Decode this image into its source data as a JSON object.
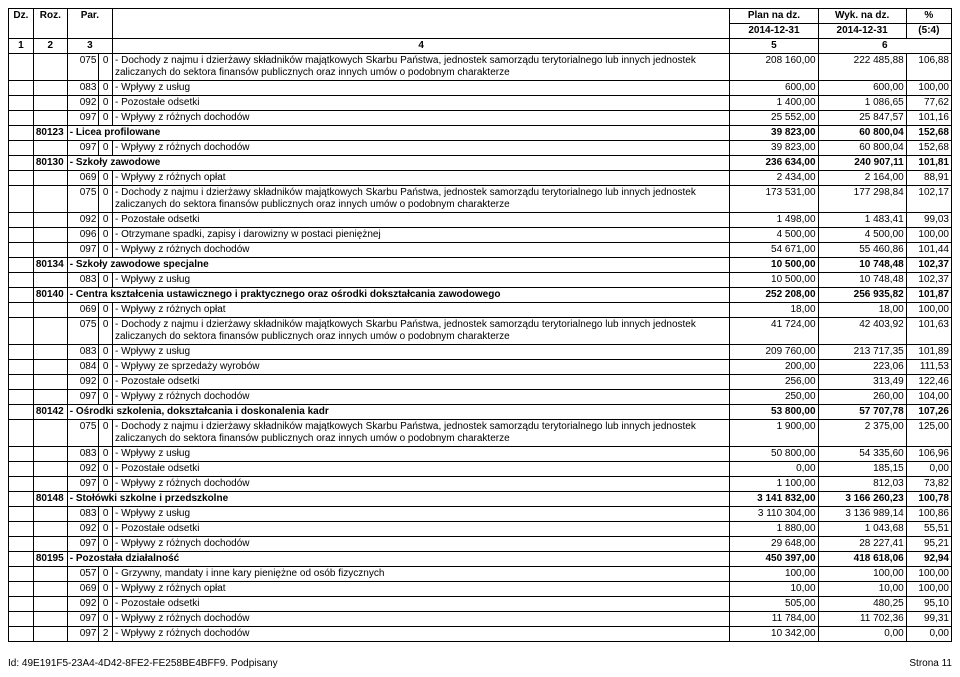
{
  "header": {
    "dz": "Dz.",
    "roz": "Roz.",
    "par": "Par.",
    "plan_label_1": "Plan na dz.",
    "plan_label_2": "2014-12-31",
    "wyk_label_1": "Wyk. na dz.",
    "wyk_label_2": "2014-12-31",
    "pct_label_1": "%",
    "pct_label_2": "(5:4)",
    "num_1": "1",
    "num_2": "2",
    "num_3": "3",
    "num_4": "4",
    "num_5": "5",
    "num_6": "6"
  },
  "rows": [
    {
      "dz": "",
      "roz": "",
      "par": "075",
      "sub": "0",
      "desc": "- Dochody z najmu i dzierżawy składników majątkowych Skarbu Państwa, jednostek samorządu terytorialnego lub innych jednostek zaliczanych do sektora finansów publicznych oraz innych umów o podobnym charakterze",
      "plan": "208 160,00",
      "wyk": "222 485,88",
      "pct": "106,88",
      "bold": false
    },
    {
      "dz": "",
      "roz": "",
      "par": "083",
      "sub": "0",
      "desc": "- Wpływy z usług",
      "plan": "600,00",
      "wyk": "600,00",
      "pct": "100,00",
      "bold": false
    },
    {
      "dz": "",
      "roz": "",
      "par": "092",
      "sub": "0",
      "desc": "- Pozostałe odsetki",
      "plan": "1 400,00",
      "wyk": "1 086,65",
      "pct": "77,62",
      "bold": false
    },
    {
      "dz": "",
      "roz": "",
      "par": "097",
      "sub": "0",
      "desc": "- Wpływy z różnych dochodów",
      "plan": "25 552,00",
      "wyk": "25 847,57",
      "pct": "101,16",
      "bold": false
    },
    {
      "dz": "",
      "roz": "80123",
      "par": "",
      "sub": "",
      "desc": "- Licea profilowane",
      "plan": "39 823,00",
      "wyk": "60 800,04",
      "pct": "152,68",
      "bold": true
    },
    {
      "dz": "",
      "roz": "",
      "par": "097",
      "sub": "0",
      "desc": "- Wpływy z różnych dochodów",
      "plan": "39 823,00",
      "wyk": "60 800,04",
      "pct": "152,68",
      "bold": false
    },
    {
      "dz": "",
      "roz": "80130",
      "par": "",
      "sub": "",
      "desc": "- Szkoły zawodowe",
      "plan": "236 634,00",
      "wyk": "240 907,11",
      "pct": "101,81",
      "bold": true
    },
    {
      "dz": "",
      "roz": "",
      "par": "069",
      "sub": "0",
      "desc": "- Wpływy z różnych opłat",
      "plan": "2 434,00",
      "wyk": "2 164,00",
      "pct": "88,91",
      "bold": false
    },
    {
      "dz": "",
      "roz": "",
      "par": "075",
      "sub": "0",
      "desc": "- Dochody z najmu i dzierżawy składników majątkowych Skarbu Państwa, jednostek samorządu terytorialnego lub innych jednostek zaliczanych do sektora finansów publicznych oraz innych umów o podobnym charakterze",
      "plan": "173 531,00",
      "wyk": "177 298,84",
      "pct": "102,17",
      "bold": false
    },
    {
      "dz": "",
      "roz": "",
      "par": "092",
      "sub": "0",
      "desc": "- Pozostałe odsetki",
      "plan": "1 498,00",
      "wyk": "1 483,41",
      "pct": "99,03",
      "bold": false
    },
    {
      "dz": "",
      "roz": "",
      "par": "096",
      "sub": "0",
      "desc": "- Otrzymane spadki, zapisy i darowizny w postaci pieniężnej",
      "plan": "4 500,00",
      "wyk": "4 500,00",
      "pct": "100,00",
      "bold": false
    },
    {
      "dz": "",
      "roz": "",
      "par": "097",
      "sub": "0",
      "desc": "- Wpływy z różnych dochodów",
      "plan": "54 671,00",
      "wyk": "55 460,86",
      "pct": "101,44",
      "bold": false
    },
    {
      "dz": "",
      "roz": "80134",
      "par": "",
      "sub": "",
      "desc": "- Szkoły zawodowe specjalne",
      "plan": "10 500,00",
      "wyk": "10 748,48",
      "pct": "102,37",
      "bold": true
    },
    {
      "dz": "",
      "roz": "",
      "par": "083",
      "sub": "0",
      "desc": "- Wpływy z usług",
      "plan": "10 500,00",
      "wyk": "10 748,48",
      "pct": "102,37",
      "bold": false
    },
    {
      "dz": "",
      "roz": "80140",
      "par": "",
      "sub": "",
      "desc": "- Centra kształcenia ustawicznego i praktycznego oraz ośrodki dokształcania zawodowego",
      "plan": "252 208,00",
      "wyk": "256 935,82",
      "pct": "101,87",
      "bold": true
    },
    {
      "dz": "",
      "roz": "",
      "par": "069",
      "sub": "0",
      "desc": "- Wpływy z różnych opłat",
      "plan": "18,00",
      "wyk": "18,00",
      "pct": "100,00",
      "bold": false
    },
    {
      "dz": "",
      "roz": "",
      "par": "075",
      "sub": "0",
      "desc": "- Dochody z najmu i dzierżawy składników majątkowych Skarbu Państwa, jednostek samorządu terytorialnego lub innych jednostek zaliczanych do sektora finansów publicznych oraz innych umów o podobnym charakterze",
      "plan": "41 724,00",
      "wyk": "42 403,92",
      "pct": "101,63",
      "bold": false
    },
    {
      "dz": "",
      "roz": "",
      "par": "083",
      "sub": "0",
      "desc": "- Wpływy z usług",
      "plan": "209 760,00",
      "wyk": "213 717,35",
      "pct": "101,89",
      "bold": false
    },
    {
      "dz": "",
      "roz": "",
      "par": "084",
      "sub": "0",
      "desc": "- Wpływy ze sprzedaży wyrobów",
      "plan": "200,00",
      "wyk": "223,06",
      "pct": "111,53",
      "bold": false
    },
    {
      "dz": "",
      "roz": "",
      "par": "092",
      "sub": "0",
      "desc": "- Pozostałe odsetki",
      "plan": "256,00",
      "wyk": "313,49",
      "pct": "122,46",
      "bold": false
    },
    {
      "dz": "",
      "roz": "",
      "par": "097",
      "sub": "0",
      "desc": "- Wpływy z różnych dochodów",
      "plan": "250,00",
      "wyk": "260,00",
      "pct": "104,00",
      "bold": false
    },
    {
      "dz": "",
      "roz": "80142",
      "par": "",
      "sub": "",
      "desc": "- Ośrodki szkolenia, dokształcania i doskonalenia kadr",
      "plan": "53 800,00",
      "wyk": "57 707,78",
      "pct": "107,26",
      "bold": true
    },
    {
      "dz": "",
      "roz": "",
      "par": "075",
      "sub": "0",
      "desc": "- Dochody z najmu i dzierżawy składników majątkowych Skarbu Państwa, jednostek samorządu terytorialnego lub innych jednostek zaliczanych do sektora finansów publicznych oraz innych umów o podobnym charakterze",
      "plan": "1 900,00",
      "wyk": "2 375,00",
      "pct": "125,00",
      "bold": false
    },
    {
      "dz": "",
      "roz": "",
      "par": "083",
      "sub": "0",
      "desc": "- Wpływy z usług",
      "plan": "50 800,00",
      "wyk": "54 335,60",
      "pct": "106,96",
      "bold": false
    },
    {
      "dz": "",
      "roz": "",
      "par": "092",
      "sub": "0",
      "desc": "- Pozostałe odsetki",
      "plan": "0,00",
      "wyk": "185,15",
      "pct": "0,00",
      "bold": false
    },
    {
      "dz": "",
      "roz": "",
      "par": "097",
      "sub": "0",
      "desc": "- Wpływy z różnych dochodów",
      "plan": "1 100,00",
      "wyk": "812,03",
      "pct": "73,82",
      "bold": false
    },
    {
      "dz": "",
      "roz": "80148",
      "par": "",
      "sub": "",
      "desc": "- Stołówki szkolne i przedszkolne",
      "plan": "3 141 832,00",
      "wyk": "3 166 260,23",
      "pct": "100,78",
      "bold": true
    },
    {
      "dz": "",
      "roz": "",
      "par": "083",
      "sub": "0",
      "desc": "- Wpływy z usług",
      "plan": "3 110 304,00",
      "wyk": "3 136 989,14",
      "pct": "100,86",
      "bold": false
    },
    {
      "dz": "",
      "roz": "",
      "par": "092",
      "sub": "0",
      "desc": "- Pozostałe odsetki",
      "plan": "1 880,00",
      "wyk": "1 043,68",
      "pct": "55,51",
      "bold": false
    },
    {
      "dz": "",
      "roz": "",
      "par": "097",
      "sub": "0",
      "desc": "- Wpływy z różnych dochodów",
      "plan": "29 648,00",
      "wyk": "28 227,41",
      "pct": "95,21",
      "bold": false
    },
    {
      "dz": "",
      "roz": "80195",
      "par": "",
      "sub": "",
      "desc": "- Pozostała działalność",
      "plan": "450 397,00",
      "wyk": "418 618,06",
      "pct": "92,94",
      "bold": true
    },
    {
      "dz": "",
      "roz": "",
      "par": "057",
      "sub": "0",
      "desc": "- Grzywny, mandaty i inne kary pieniężne od osób fizycznych",
      "plan": "100,00",
      "wyk": "100,00",
      "pct": "100,00",
      "bold": false
    },
    {
      "dz": "",
      "roz": "",
      "par": "069",
      "sub": "0",
      "desc": "- Wpływy z różnych opłat",
      "plan": "10,00",
      "wyk": "10,00",
      "pct": "100,00",
      "bold": false
    },
    {
      "dz": "",
      "roz": "",
      "par": "092",
      "sub": "0",
      "desc": "- Pozostałe odsetki",
      "plan": "505,00",
      "wyk": "480,25",
      "pct": "95,10",
      "bold": false
    },
    {
      "dz": "",
      "roz": "",
      "par": "097",
      "sub": "0",
      "desc": "- Wpływy z różnych dochodów",
      "plan": "11 784,00",
      "wyk": "11 702,36",
      "pct": "99,31",
      "bold": false
    },
    {
      "dz": "",
      "roz": "",
      "par": "097",
      "sub": "2",
      "desc": "- Wpływy z różnych dochodów",
      "plan": "10 342,00",
      "wyk": "0,00",
      "pct": "0,00",
      "bold": false
    }
  ],
  "footer": {
    "id": "Id: 49E191F5-23A4-4D42-8FE2-FE258BE4BFF9. Podpisany",
    "page": "Strona 11"
  }
}
